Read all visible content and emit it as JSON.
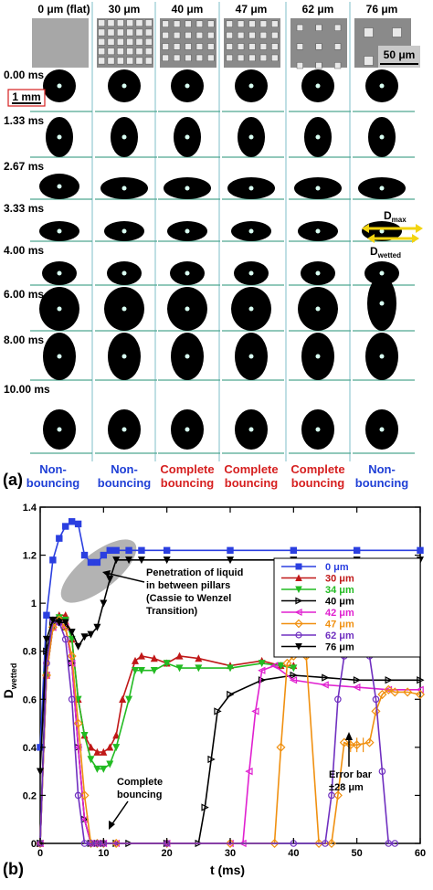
{
  "panel_a": {
    "label": "(a)",
    "columns": [
      "0 μm (flat)",
      "30 μm",
      "40 μm",
      "47 μm",
      "62 μm",
      "76 μm"
    ],
    "scale_bar_sem": "50 μm",
    "scale_bar_drop": "1 mm",
    "times": [
      "0.00 ms",
      "1.33 ms",
      "2.67 ms",
      "3.33 ms",
      "4.00 ms",
      "6.00 ms",
      "8.00 ms",
      "10.00 ms"
    ],
    "outcomes": [
      {
        "line1": "Non-",
        "line2": "bouncing",
        "color": "#1f3fd6"
      },
      {
        "line1": "Non-",
        "line2": "bouncing",
        "color": "#1f3fd6"
      },
      {
        "line1": "Complete",
        "line2": "bouncing",
        "color": "#d62020"
      },
      {
        "line1": "Complete",
        "line2": "bouncing",
        "color": "#d62020"
      },
      {
        "line1": "Complete",
        "line2": "bouncing",
        "color": "#d62020"
      },
      {
        "line1": "Non-",
        "line2": "bouncing",
        "color": "#1f3fd6"
      }
    ],
    "dmax_label": "D",
    "dmax_sub": "max",
    "dwetted_label": "D",
    "dwetted_sub": "wetted"
  },
  "panel_b": {
    "label": "(b)",
    "annotations": {
      "penetration": [
        "Penetration of liquid",
        "in between pillars",
        "(Cassie to Wenzel",
        "Transition)"
      ],
      "complete": [
        "Complete",
        "bouncing"
      ],
      "error": [
        "Error bar",
        "±28 μm"
      ]
    }
  },
  "chart_data": {
    "type": "line",
    "xlabel": "t (ms)",
    "ylabel": "D",
    "ylabel_sub": "wetted",
    "xlim": [
      0,
      60
    ],
    "ylim": [
      0,
      1.4
    ],
    "xticks": [
      "0",
      "10",
      "20",
      "30",
      "40",
      "50",
      "60"
    ],
    "yticks": [
      "0",
      "0.2",
      "0.4",
      "0.6",
      "0.8",
      "1",
      "1.2",
      "1.4"
    ],
    "legend_position": "upper-right",
    "series": [
      {
        "name": "0  μm",
        "color": "#2b3fe0",
        "marker": "square",
        "x": [
          0,
          1,
          2,
          3,
          4,
          5,
          6,
          7,
          8,
          9,
          10,
          11,
          12,
          14,
          16,
          20,
          30,
          40,
          50,
          60
        ],
        "y": [
          0.4,
          0.95,
          1.18,
          1.27,
          1.32,
          1.34,
          1.33,
          1.2,
          1.17,
          1.17,
          1.2,
          1.22,
          1.22,
          1.22,
          1.22,
          1.22,
          1.22,
          1.22,
          1.22,
          1.22
        ]
      },
      {
        "name": "30 μm",
        "color": "#c01818",
        "marker": "triangle-up",
        "x": [
          0,
          1,
          2,
          3,
          4,
          5,
          6,
          7,
          8,
          9,
          10,
          11,
          12,
          13,
          15,
          16,
          18,
          20,
          22,
          25,
          30,
          35,
          38,
          40
        ],
        "y": [
          0,
          0.7,
          0.9,
          0.95,
          0.95,
          0.85,
          0.6,
          0.45,
          0.4,
          0.38,
          0.38,
          0.4,
          0.45,
          0.6,
          0.76,
          0.78,
          0.77,
          0.75,
          0.78,
          0.77,
          0.74,
          0.76,
          0.74,
          0.74
        ]
      },
      {
        "name": "34 μm",
        "color": "#22bb22",
        "marker": "triangle-down",
        "x": [
          0,
          1,
          2,
          3,
          4,
          5,
          6,
          7,
          8,
          9,
          10,
          11,
          12,
          14,
          15,
          16,
          18,
          20,
          22,
          25,
          30,
          35,
          38,
          40
        ],
        "y": [
          0,
          0.7,
          0.9,
          0.94,
          0.93,
          0.85,
          0.6,
          0.45,
          0.35,
          0.31,
          0.31,
          0.33,
          0.4,
          0.6,
          0.72,
          0.72,
          0.72,
          0.75,
          0.73,
          0.73,
          0.73,
          0.75,
          0.74,
          0.73
        ]
      },
      {
        "name": "40 μm",
        "color": "#000000",
        "marker": "triangle-right",
        "x": [
          0,
          1,
          2,
          3,
          4,
          5,
          6,
          7,
          8,
          9,
          10,
          12,
          14,
          20,
          25,
          26,
          27,
          28,
          30,
          35,
          40,
          45,
          50,
          55,
          60
        ],
        "y": [
          0,
          0.8,
          0.92,
          0.93,
          0.9,
          0.75,
          0.4,
          0.1,
          0,
          0,
          0,
          0,
          0,
          0,
          0,
          0.15,
          0.35,
          0.55,
          0.62,
          0.68,
          0.7,
          0.69,
          0.68,
          0.68,
          0.68
        ]
      },
      {
        "name": "42 μm",
        "color": "#e020d0",
        "marker": "triangle-left",
        "x": [
          0,
          1,
          2,
          3,
          4,
          5,
          6,
          7,
          8,
          9,
          10,
          12,
          20,
          30,
          32,
          33,
          34,
          35,
          37,
          40,
          45,
          50,
          55,
          60
        ],
        "y": [
          0,
          0.7,
          0.9,
          0.92,
          0.9,
          0.75,
          0.4,
          0.1,
          0,
          0,
          0,
          0,
          0,
          0,
          0,
          0.3,
          0.55,
          0.72,
          0.74,
          0.68,
          0.66,
          0.65,
          0.64,
          0.64
        ]
      },
      {
        "name": "47 μm",
        "color": "#f09010",
        "marker": "diamond",
        "x": [
          0,
          1,
          2,
          3,
          4,
          5,
          6,
          7,
          8,
          9,
          10,
          12,
          20,
          30,
          37,
          38,
          39,
          40,
          42,
          44,
          46,
          47,
          48,
          49,
          50,
          52,
          53,
          54,
          55,
          56,
          58,
          60
        ],
        "y": [
          0,
          0.7,
          0.9,
          0.93,
          0.9,
          0.78,
          0.5,
          0.2,
          0,
          0,
          0,
          0,
          0,
          0,
          0,
          0.4,
          0.75,
          0.78,
          0.78,
          0,
          0,
          0.2,
          0.42,
          0.41,
          0.41,
          0.42,
          0.55,
          0.62,
          0.64,
          0.63,
          0.63,
          0.62
        ]
      },
      {
        "name": "62 μm",
        "color": "#7030c0",
        "marker": "circle",
        "x": [
          0,
          1,
          2,
          3,
          4,
          5,
          6,
          7,
          8,
          9,
          10,
          20,
          40,
          45,
          46,
          47,
          48,
          50,
          52,
          53,
          54,
          55,
          56
        ],
        "y": [
          0,
          0.75,
          0.93,
          0.92,
          0.85,
          0.6,
          0.2,
          0,
          0,
          0,
          0,
          0,
          0,
          0,
          0.2,
          0.6,
          0.78,
          0.8,
          0.78,
          0.6,
          0.3,
          0,
          0
        ]
      },
      {
        "name": "76 μm",
        "color": "#000000",
        "marker": "triangle-down-filled",
        "x": [
          0,
          1,
          2,
          3,
          4,
          5,
          6,
          7,
          8,
          9,
          10,
          11,
          12,
          14,
          16,
          20,
          30,
          40,
          50,
          60
        ],
        "y": [
          0.3,
          0.85,
          0.93,
          0.92,
          0.92,
          0.88,
          0.82,
          0.86,
          0.87,
          0.9,
          1.0,
          1.1,
          1.18,
          1.18,
          1.18,
          1.18,
          1.18,
          1.18,
          1.18,
          1.18
        ]
      }
    ]
  }
}
